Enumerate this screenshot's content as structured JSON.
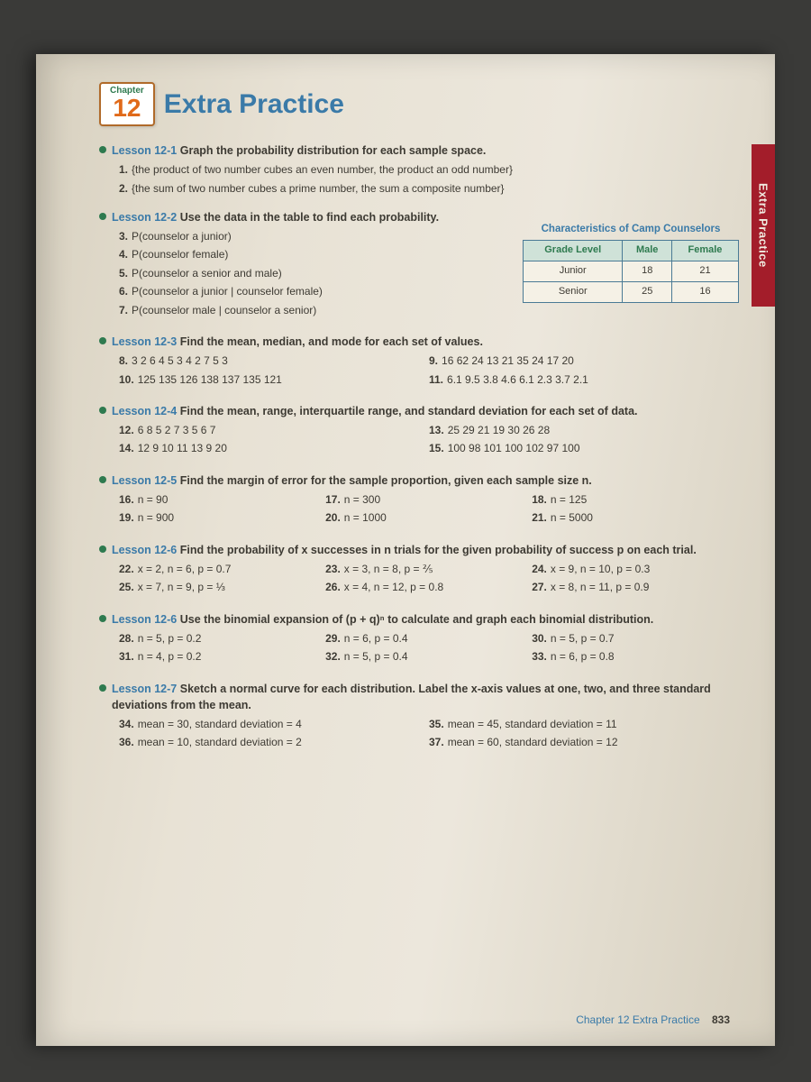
{
  "sideTab": "Extra Practice",
  "chapter": {
    "label": "Chapter",
    "number": "12"
  },
  "title": "Extra Practice",
  "table": {
    "caption": "Characteristics of Camp Counselors",
    "headers": [
      "Grade Level",
      "Male",
      "Female"
    ],
    "rows": [
      [
        "Junior",
        "18",
        "21"
      ],
      [
        "Senior",
        "25",
        "16"
      ]
    ]
  },
  "lessons": [
    {
      "label": "Lesson 12-1",
      "instruction": "Graph the probability distribution for each sample space.",
      "layout": "single",
      "items": [
        {
          "n": "1.",
          "t": "{the product of two number cubes an even number, the product an odd number}"
        },
        {
          "n": "2.",
          "t": "{the sum of two number cubes a prime number, the sum a composite number}"
        }
      ]
    },
    {
      "label": "Lesson 12-2",
      "instruction": "Use the data in the table to find each probability.",
      "layout": "single",
      "hasTable": true,
      "items": [
        {
          "n": "3.",
          "t": "P(counselor a junior)"
        },
        {
          "n": "4.",
          "t": "P(counselor female)"
        },
        {
          "n": "5.",
          "t": "P(counselor a senior and male)"
        },
        {
          "n": "6.",
          "t": "P(counselor a junior | counselor female)"
        },
        {
          "n": "7.",
          "t": "P(counselor male | counselor a senior)"
        }
      ]
    },
    {
      "label": "Lesson 12-3",
      "instruction": "Find the mean, median, and mode for each set of values.",
      "layout": "col2",
      "items": [
        {
          "n": "8.",
          "t": "3  2  6  4  5  3  4  2  7  5  3"
        },
        {
          "n": "9.",
          "t": "16  62  24  13  21  35  24  17  20"
        },
        {
          "n": "10.",
          "t": "125  135  126  138  137  135  121"
        },
        {
          "n": "11.",
          "t": "6.1  9.5  3.8  4.6  6.1  2.3  3.7  2.1"
        }
      ]
    },
    {
      "label": "Lesson 12-4",
      "instruction": "Find the mean, range, interquartile range, and standard deviation for each set of data.",
      "layout": "col2",
      "items": [
        {
          "n": "12.",
          "t": "6  8  5  2  7  3  5  6  7"
        },
        {
          "n": "13.",
          "t": "25  29  21  19  30  26  28"
        },
        {
          "n": "14.",
          "t": "12  9  10  11  13  9  20"
        },
        {
          "n": "15.",
          "t": "100  98  101  100  102  97  100"
        }
      ]
    },
    {
      "label": "Lesson 12-5",
      "instruction": "Find the margin of error for the sample proportion, given each sample size n.",
      "layout": "col3",
      "items": [
        {
          "n": "16.",
          "t": "n = 90"
        },
        {
          "n": "17.",
          "t": "n = 300"
        },
        {
          "n": "18.",
          "t": "n = 125"
        },
        {
          "n": "19.",
          "t": "n = 900"
        },
        {
          "n": "20.",
          "t": "n = 1000"
        },
        {
          "n": "21.",
          "t": "n = 5000"
        }
      ]
    },
    {
      "label": "Lesson 12-6",
      "instruction": "Find the probability of x successes in n trials for the given probability of success p on each trial.",
      "layout": "col3",
      "items": [
        {
          "n": "22.",
          "t": "x = 2, n = 6, p = 0.7"
        },
        {
          "n": "23.",
          "t": "x = 3, n = 8, p = ⅖"
        },
        {
          "n": "24.",
          "t": "x = 9, n = 10, p = 0.3"
        },
        {
          "n": "25.",
          "t": "x = 7, n = 9, p = ⅓"
        },
        {
          "n": "26.",
          "t": "x = 4, n = 12, p = 0.8"
        },
        {
          "n": "27.",
          "t": "x = 8, n = 11, p = 0.9"
        }
      ]
    },
    {
      "label": "Lesson 12-6",
      "instruction": "Use the binomial expansion of (p + q)ⁿ to calculate and graph each binomial distribution.",
      "layout": "col3",
      "items": [
        {
          "n": "28.",
          "t": "n = 5, p = 0.2"
        },
        {
          "n": "29.",
          "t": "n = 6, p = 0.4"
        },
        {
          "n": "30.",
          "t": "n = 5, p = 0.7"
        },
        {
          "n": "31.",
          "t": "n = 4, p = 0.2"
        },
        {
          "n": "32.",
          "t": "n = 5, p = 0.4"
        },
        {
          "n": "33.",
          "t": "n = 6, p = 0.8"
        }
      ]
    },
    {
      "label": "Lesson 12-7",
      "instruction": "Sketch a normal curve for each distribution. Label the x-axis values at one, two, and three standard deviations from the mean.",
      "layout": "col2",
      "items": [
        {
          "n": "34.",
          "t": "mean = 30, standard deviation = 4"
        },
        {
          "n": "35.",
          "t": "mean = 45, standard deviation = 11"
        },
        {
          "n": "36.",
          "t": "mean = 10, standard deviation = 2"
        },
        {
          "n": "37.",
          "t": "mean = 60, standard deviation = 12"
        }
      ]
    }
  ],
  "footer": {
    "text": "Chapter 12   Extra Practice",
    "page": "833"
  }
}
